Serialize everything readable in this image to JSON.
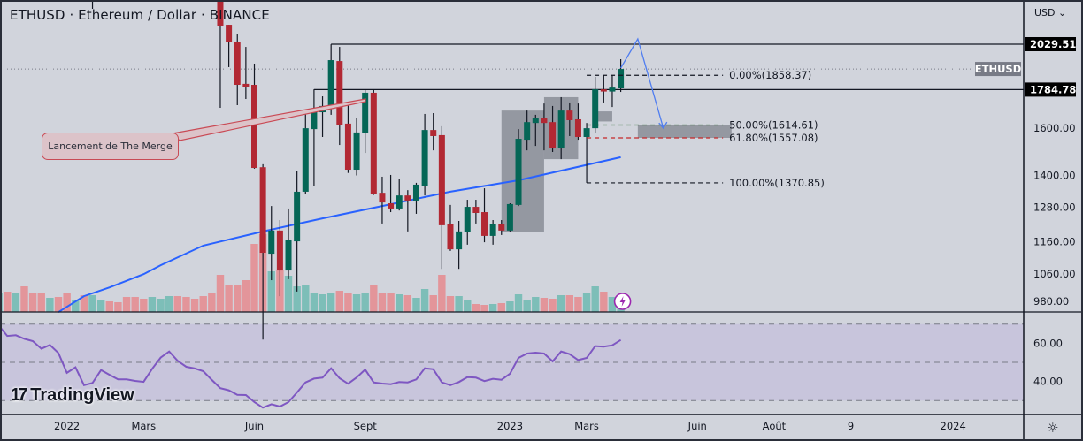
{
  "header": {
    "title": "ETHUSD · Ethereum / Dollar · BINANCE",
    "currency": "USD",
    "currency_chevron": "⌄"
  },
  "colors": {
    "up": "#056656",
    "down": "#b22833",
    "vol_up": "#7dbeb8",
    "vol_down": "#e3959a",
    "ma": "#2962ff",
    "rsi": "#7e57c2",
    "rsi_band": "#c8c5dc",
    "background": "#d1d4dc"
  },
  "chart_data": [
    {
      "type": "candlestick",
      "title": "ETHUSD · Ethereum / Dollar · BINANCE",
      "interval": "weekly",
      "y_scale": "log",
      "ylim": [
        940,
        2300
      ],
      "y_ticks": [
        1600,
        1400,
        1280,
        1160,
        1060,
        980
      ],
      "y_tick_labels": [
        "1600.00",
        "1400.00",
        "1280.00",
        "1160.00",
        "1060.00",
        "980.00"
      ],
      "x_ticks": [
        {
          "d": "2022-01-03",
          "label": "2022"
        },
        {
          "d": "2022-03-07",
          "label": "Mars"
        },
        {
          "d": "2022-06-06",
          "label": "Juin"
        },
        {
          "d": "2022-09-05",
          "label": "Sept"
        },
        {
          "d": "2023-01-02",
          "label": "2023"
        },
        {
          "d": "2023-03-06",
          "label": "Mars"
        },
        {
          "d": "2023-06-05",
          "label": "Juin"
        },
        {
          "d": "2023-08-07",
          "label": "Août"
        },
        {
          "d": "2023-10-09",
          "label": "9"
        },
        {
          "d": "2024-01-01",
          "label": "2024"
        }
      ],
      "bars": [
        {
          "d": "2021-11-08",
          "o": null,
          "h": null,
          "l": null,
          "c": null,
          "dir": "up",
          "v": 21,
          "rsi": 69.2
        },
        {
          "d": "2021-11-15",
          "o": null,
          "h": null,
          "l": null,
          "c": null,
          "dir": "down",
          "v": 23,
          "rsi": 63.8
        },
        {
          "d": "2021-11-22",
          "o": null,
          "h": null,
          "l": null,
          "c": null,
          "dir": "up",
          "v": 21,
          "rsi": 64.2
        },
        {
          "d": "2021-11-29",
          "o": null,
          "h": null,
          "l": null,
          "c": null,
          "dir": "down",
          "v": 29,
          "rsi": 62.3
        },
        {
          "d": "2021-12-06",
          "o": null,
          "h": null,
          "l": null,
          "c": null,
          "dir": "down",
          "v": 21,
          "rsi": 61.1
        },
        {
          "d": "2021-12-13",
          "o": null,
          "h": null,
          "l": null,
          "c": null,
          "dir": "down",
          "v": 22,
          "rsi": 57.1
        },
        {
          "d": "2021-12-20",
          "o": null,
          "h": null,
          "l": null,
          "c": null,
          "dir": "up",
          "v": 16,
          "rsi": 59.1
        },
        {
          "d": "2021-12-27",
          "o": null,
          "h": null,
          "l": null,
          "c": null,
          "dir": "down",
          "v": 17,
          "rsi": 54.9
        },
        {
          "d": "2022-01-03",
          "o": null,
          "h": null,
          "l": null,
          "c": null,
          "dir": "down",
          "v": 21,
          "rsi": 44.5
        },
        {
          "d": "2022-01-10",
          "o": null,
          "h": null,
          "l": null,
          "c": null,
          "dir": "up",
          "v": 14,
          "rsi": 47.4
        },
        {
          "d": "2022-01-17",
          "o": null,
          "h": null,
          "l": null,
          "c": null,
          "dir": "down",
          "v": 19,
          "rsi": 38.1
        },
        {
          "d": "2022-01-24",
          "o": null,
          "h": null,
          "l": 2243,
          "c": null,
          "dir": "up",
          "v": 19,
          "rsi": 39.2
        },
        {
          "d": "2022-01-31",
          "o": null,
          "h": null,
          "l": null,
          "c": null,
          "dir": "up",
          "v": 14,
          "rsi": 46.0
        },
        {
          "d": "2022-02-07",
          "o": null,
          "h": null,
          "l": null,
          "c": null,
          "dir": "down",
          "v": 12,
          "rsi": 43.5
        },
        {
          "d": "2022-02-14",
          "o": null,
          "h": null,
          "l": null,
          "c": null,
          "dir": "down",
          "v": 11,
          "rsi": 41.1
        },
        {
          "d": "2022-02-21",
          "o": null,
          "h": null,
          "l": null,
          "c": null,
          "dir": "down",
          "v": 17,
          "rsi": 41.1
        },
        {
          "d": "2022-02-28",
          "o": null,
          "h": null,
          "l": null,
          "c": null,
          "dir": "down",
          "v": 17,
          "rsi": 40.3
        },
        {
          "d": "2022-03-07",
          "o": null,
          "h": null,
          "l": null,
          "c": null,
          "dir": "down",
          "v": 15,
          "rsi": 39.8
        },
        {
          "d": "2022-03-14",
          "o": null,
          "h": null,
          "l": null,
          "c": null,
          "dir": "up",
          "v": 17,
          "rsi": 46.6
        },
        {
          "d": "2022-03-21",
          "o": null,
          "h": null,
          "l": null,
          "c": null,
          "dir": "up",
          "v": 15,
          "rsi": 52.5
        },
        {
          "d": "2022-03-28",
          "o": null,
          "h": null,
          "l": null,
          "c": null,
          "dir": "up",
          "v": 18,
          "rsi": 55.7
        },
        {
          "d": "2022-04-04",
          "o": null,
          "h": null,
          "l": null,
          "c": null,
          "dir": "down",
          "v": 18,
          "rsi": 50.8
        },
        {
          "d": "2022-04-11",
          "o": null,
          "h": null,
          "l": null,
          "c": null,
          "dir": "down",
          "v": 17,
          "rsi": 47.7
        },
        {
          "d": "2022-04-18",
          "o": null,
          "h": null,
          "l": null,
          "c": null,
          "dir": "down",
          "v": 15,
          "rsi": 46.8
        },
        {
          "d": "2022-04-25",
          "o": null,
          "h": null,
          "l": null,
          "c": null,
          "dir": "down",
          "v": 18,
          "rsi": 45.4
        },
        {
          "d": "2022-05-02",
          "o": null,
          "h": null,
          "l": null,
          "c": null,
          "dir": "down",
          "v": 21,
          "rsi": 40.8
        },
        {
          "d": "2022-05-09",
          "o": 2420,
          "h": 2460,
          "l": 1695,
          "c": 2139,
          "v": 42,
          "rsi": 36.5
        },
        {
          "d": "2022-05-16",
          "o": 2144,
          "h": 2144,
          "l": 1902,
          "c": 2040,
          "v": 31,
          "rsi": 35.4
        },
        {
          "d": "2022-05-23",
          "o": 2040,
          "h": 2086,
          "l": 1708,
          "c": 1809,
          "v": 31,
          "rsi": 33.0
        },
        {
          "d": "2022-05-30",
          "o": 1814,
          "h": 2014,
          "l": 1738,
          "c": 1800,
          "v": 36,
          "rsi": 32.9
        },
        {
          "d": "2022-06-06",
          "o": 1809,
          "h": 1921,
          "l": 1427,
          "c": 1430,
          "v": 77,
          "rsi": 29.2
        },
        {
          "d": "2022-06-13",
          "o": 1433,
          "h": 1445,
          "l": 880,
          "c": 1125,
          "v": 88,
          "rsi": 26.3
        },
        {
          "d": "2022-06-20",
          "o": 1122,
          "h": 1284,
          "l": 1041,
          "c": 1198,
          "v": 46,
          "rsi": 28.1
        },
        {
          "d": "2022-06-27",
          "o": 1198,
          "h": 1234,
          "l": 995,
          "c": 1070,
          "v": 47,
          "rsi": 26.9
        },
        {
          "d": "2022-07-04",
          "o": 1070,
          "h": 1275,
          "l": 1044,
          "c": 1168,
          "v": 41,
          "rsi": 29.2
        },
        {
          "d": "2022-07-11",
          "o": 1162,
          "h": 1416,
          "l": 1008,
          "c": 1337,
          "v": 29,
          "rsi": 34.3
        },
        {
          "d": "2022-07-18",
          "o": 1337,
          "h": 1666,
          "l": 1330,
          "c": 1600,
          "v": 30,
          "rsi": 39.5
        },
        {
          "d": "2022-07-25",
          "o": 1596,
          "h": 1786,
          "l": 1357,
          "c": 1682,
          "v": 22,
          "rsi": 41.5
        },
        {
          "d": "2022-08-01",
          "o": 1674,
          "h": 1751,
          "l": 1561,
          "c": 1704,
          "v": 20,
          "rsi": 42.0
        },
        {
          "d": "2022-08-08",
          "o": 1699,
          "h": 2029,
          "l": 1662,
          "c": 1940,
          "v": 21,
          "rsi": 46.9
        },
        {
          "d": "2022-08-15",
          "o": 1935,
          "h": 2014,
          "l": 1526,
          "c": 1613,
          "v": 24,
          "rsi": 41.7
        },
        {
          "d": "2022-08-22",
          "o": 1621,
          "h": 1721,
          "l": 1410,
          "c": 1423,
          "v": 22,
          "rsi": 38.8
        },
        {
          "d": "2022-08-29",
          "o": 1423,
          "h": 1649,
          "l": 1400,
          "c": 1581,
          "v": 20,
          "rsi": 42.1
        },
        {
          "d": "2022-09-05",
          "o": 1577,
          "h": 1786,
          "l": 1492,
          "c": 1769,
          "v": 21,
          "rsi": 46.2
        },
        {
          "d": "2022-09-12",
          "o": 1769,
          "h": 1786,
          "l": 1325,
          "c": 1330,
          "v": 30,
          "rsi": 39.5
        },
        {
          "d": "2022-09-19",
          "o": 1333,
          "h": 1395,
          "l": 1222,
          "c": 1297,
          "v": 21,
          "rsi": 38.9
        },
        {
          "d": "2022-09-26",
          "o": 1294,
          "h": 1402,
          "l": 1262,
          "c": 1275,
          "v": 22,
          "rsi": 38.6
        },
        {
          "d": "2022-10-03",
          "o": 1275,
          "h": 1385,
          "l": 1268,
          "c": 1323,
          "v": 20,
          "rsi": 39.7
        },
        {
          "d": "2022-10-10",
          "o": 1323,
          "h": 1343,
          "l": 1195,
          "c": 1304,
          "v": 19,
          "rsi": 39.5
        },
        {
          "d": "2022-10-17",
          "o": 1304,
          "h": 1371,
          "l": 1256,
          "c": 1364,
          "v": 16,
          "rsi": 41.1
        },
        {
          "d": "2022-10-24",
          "o": 1360,
          "h": 1666,
          "l": 1323,
          "c": 1592,
          "v": 26,
          "rsi": 46.9
        },
        {
          "d": "2022-10-31",
          "o": 1592,
          "h": 1670,
          "l": 1503,
          "c": 1565,
          "v": 19,
          "rsi": 46.4
        },
        {
          "d": "2022-11-07",
          "o": 1569,
          "h": 1609,
          "l": 1075,
          "c": 1216,
          "v": 42,
          "rsi": 39.5
        },
        {
          "d": "2022-11-14",
          "o": 1219,
          "h": 1288,
          "l": 1131,
          "c": 1136,
          "v": 18,
          "rsi": 38.1
        },
        {
          "d": "2022-11-21",
          "o": 1136,
          "h": 1231,
          "l": 1075,
          "c": 1195,
          "v": 18,
          "rsi": 39.7
        },
        {
          "d": "2022-11-28",
          "o": 1192,
          "h": 1307,
          "l": 1151,
          "c": 1281,
          "v": 13,
          "rsi": 42.3
        },
        {
          "d": "2022-12-05",
          "o": 1281,
          "h": 1307,
          "l": 1222,
          "c": 1259,
          "v": 9,
          "rsi": 42.0
        },
        {
          "d": "2022-12-12",
          "o": 1262,
          "h": 1350,
          "l": 1159,
          "c": 1180,
          "v": 8,
          "rsi": 40.2
        },
        {
          "d": "2022-12-19",
          "o": 1180,
          "h": 1234,
          "l": 1151,
          "c": 1219,
          "v": 9,
          "rsi": 41.4
        },
        {
          "d": "2022-12-26",
          "o": 1219,
          "h": 1234,
          "l": 1183,
          "c": 1198,
          "v": 10,
          "rsi": 40.9
        },
        {
          "d": "2023-01-02",
          "o": 1198,
          "h": 1294,
          "l": 1195,
          "c": 1291,
          "v": 12,
          "rsi": 44.1
        },
        {
          "d": "2023-01-09",
          "o": 1288,
          "h": 1596,
          "l": 1284,
          "c": 1553,
          "v": 20,
          "rsi": 52.3
        },
        {
          "d": "2023-01-16",
          "o": 1549,
          "h": 1682,
          "l": 1503,
          "c": 1628,
          "v": 13,
          "rsi": 54.6
        },
        {
          "d": "2023-01-23",
          "o": 1624,
          "h": 1662,
          "l": 1522,
          "c": 1645,
          "v": 17,
          "rsi": 55.1
        },
        {
          "d": "2023-01-30",
          "o": 1645,
          "h": 1716,
          "l": 1503,
          "c": 1624,
          "v": 16,
          "rsi": 54.6
        },
        {
          "d": "2023-02-06",
          "o": 1628,
          "h": 1704,
          "l": 1496,
          "c": 1511,
          "v": 15,
          "rsi": 50.5
        },
        {
          "d": "2023-02-13",
          "o": 1511,
          "h": 1747,
          "l": 1466,
          "c": 1682,
          "v": 19,
          "rsi": 55.7
        },
        {
          "d": "2023-02-20",
          "o": 1682,
          "h": 1721,
          "l": 1565,
          "c": 1637,
          "v": 19,
          "rsi": 54.3
        },
        {
          "d": "2023-02-27",
          "o": 1641,
          "h": 1716,
          "l": 1549,
          "c": 1561,
          "v": 17,
          "rsi": 51.2
        },
        {
          "d": "2023-03-06",
          "o": 1561,
          "h": 1624,
          "l": 1371,
          "c": 1600,
          "v": 22,
          "rsi": 52.3
        },
        {
          "d": "2023-03-13",
          "o": 1600,
          "h": 1850,
          "l": 1577,
          "c": 1786,
          "v": 29,
          "rsi": 58.5
        },
        {
          "d": "2023-03-20",
          "o": 1786,
          "h": 1859,
          "l": 1721,
          "c": 1775,
          "v": 23,
          "rsi": 58.2
        },
        {
          "d": "2023-03-27",
          "o": 1775,
          "h": 1859,
          "l": 1699,
          "c": 1795,
          "v": 17,
          "rsi": 58.9
        },
        {
          "d": "2023-04-03",
          "o": 1791,
          "h": 1945,
          "l": 1773,
          "c": 1892,
          "v": 12,
          "rsi": 61.7
        }
      ],
      "moving_average": [
        {
          "d": "2021-12-27",
          "value": 951
        },
        {
          "d": "2022-01-17",
          "value": 995
        },
        {
          "d": "2022-02-07",
          "value": 1020
        },
        {
          "d": "2022-03-07",
          "value": 1059
        },
        {
          "d": "2022-03-21",
          "value": 1086
        },
        {
          "d": "2022-04-25",
          "value": 1148
        },
        {
          "d": "2022-06-13",
          "value": 1195
        },
        {
          "d": "2022-08-01",
          "value": 1240
        },
        {
          "d": "2022-09-19",
          "value": 1284
        },
        {
          "d": "2022-11-14",
          "value": 1337
        },
        {
          "d": "2023-01-09",
          "value": 1381
        },
        {
          "d": "2023-04-03",
          "value": 1474
        }
      ]
    },
    {
      "type": "line",
      "indicator": "RSI",
      "ylim": [
        20,
        75
      ],
      "y_ticks": [
        60,
        40
      ],
      "y_tick_labels": [
        "60.00",
        "40.00"
      ],
      "bands": [
        70,
        50,
        30
      ]
    }
  ],
  "price_lines": [
    {
      "price": 2029.51,
      "label": "2029.51",
      "from": "2022-08-08"
    },
    {
      "price": 1784.78,
      "label": "1784.78",
      "from": "2022-07-25"
    }
  ],
  "last_price": {
    "price": 1892,
    "symbol": "ETHUSD"
  },
  "fibonacci": {
    "from": "2023-03-06",
    "to": "2023-06-26",
    "levels": [
      {
        "pct": "0.00%",
        "price": 1858.37,
        "label": "0.00%(1858.37)",
        "color": "#131722"
      },
      {
        "pct": "50.00%",
        "price": 1614.61,
        "label": "50.00%(1614.61)",
        "color": "#2e6b30"
      },
      {
        "pct": "61.80%",
        "price": 1557.08,
        "label": "61.80%(1557.08)",
        "color": "#c62828"
      },
      {
        "pct": "100.00%",
        "price": 1370.85,
        "label": "100.00%(1370.85)",
        "color": "#131722"
      }
    ]
  },
  "zones": [
    {
      "from": "2022-12-26",
      "to": "2023-01-30",
      "top": 1682,
      "bottom": 1192
    },
    {
      "from": "2023-01-30",
      "to": "2023-02-27",
      "top": 1747,
      "bottom": 1466
    },
    {
      "from": "2023-03-13",
      "to": "2023-03-27",
      "top": 1678,
      "bottom": 1631
    },
    {
      "from": "2023-04-17",
      "to": "2023-07-03",
      "top": 1614.61,
      "bottom": 1557.08
    }
  ],
  "projection_path": [
    {
      "d": "2023-04-03",
      "price": 1897
    },
    {
      "d": "2023-04-17",
      "price": 2060
    },
    {
      "d": "2023-05-08",
      "price": 1600
    }
  ],
  "callout": {
    "text": "Lancement de The Merge"
  },
  "logo": {
    "mark": "17",
    "text": "TradingView"
  },
  "footer": {
    "settings_icon": "gear-icon"
  }
}
